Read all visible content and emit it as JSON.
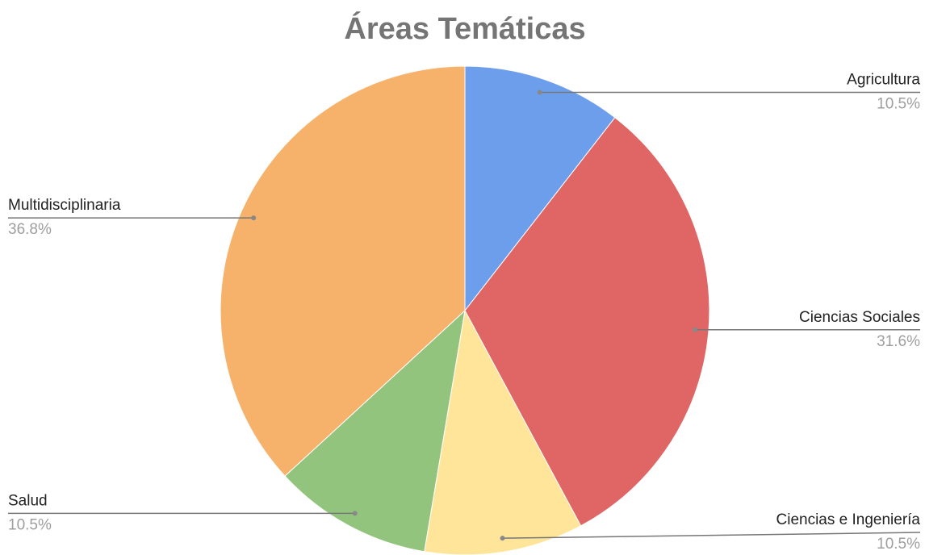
{
  "chart_data": {
    "type": "pie",
    "title": "Áreas Temáticas",
    "categories": [
      "Agricultura",
      "Ciencias Sociales",
      "Ciencias e Ingeniería",
      "Salud",
      "Multidisciplinaria"
    ],
    "values": [
      10.5,
      31.6,
      10.5,
      10.5,
      36.8
    ],
    "value_labels": [
      "10.5%",
      "31.6%",
      "10.5%",
      "10.5%",
      "36.8%"
    ],
    "colors": [
      "#6d9eeb",
      "#e06666",
      "#ffe599",
      "#93c47d",
      "#f6b26b"
    ]
  }
}
